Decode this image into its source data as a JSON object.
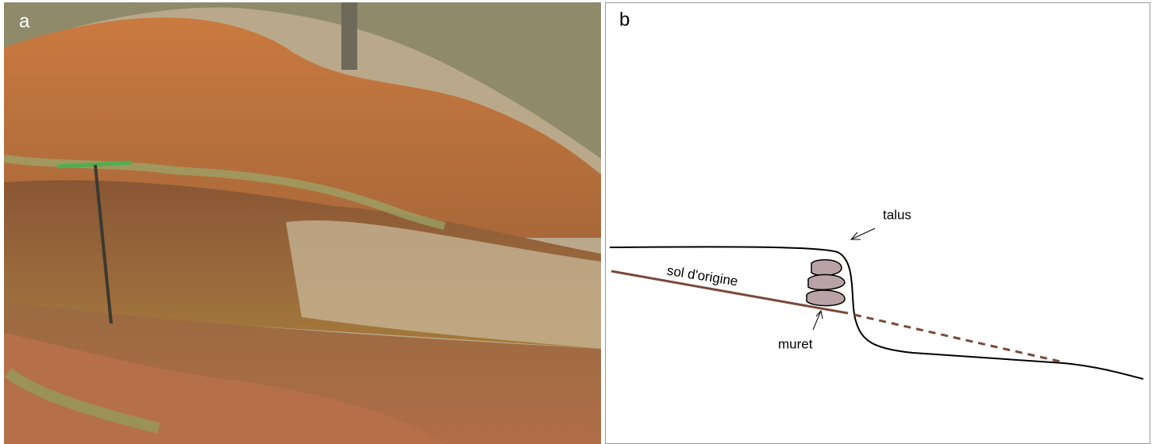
{
  "photo": {
    "label": "a"
  },
  "diagram": {
    "label": "b",
    "labels": {
      "talus": "talus",
      "original_soil": "sol d'origine",
      "wall": "muret"
    }
  }
}
